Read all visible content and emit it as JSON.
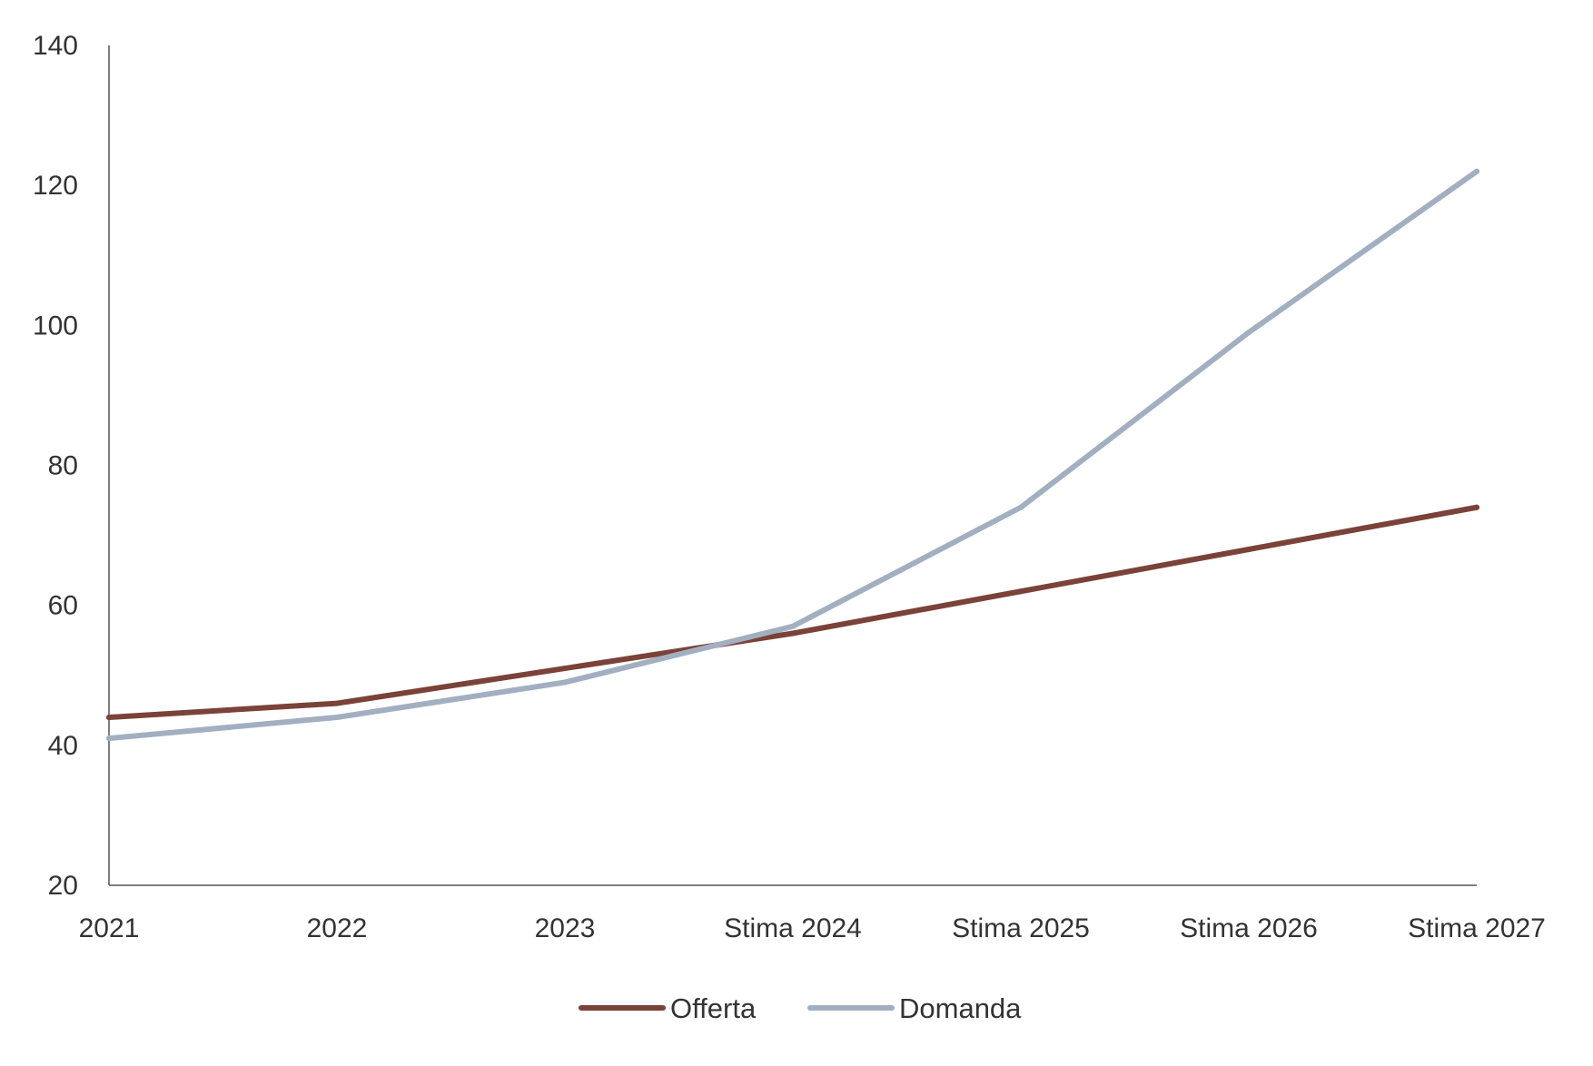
{
  "chart_data": {
    "type": "line",
    "title": "",
    "xlabel": "",
    "ylabel": "",
    "categories": [
      "2021",
      "2022",
      "2023",
      "Stima 2024",
      "Stima 2025",
      "Stima 2026",
      "Stima 2027"
    ],
    "series": [
      {
        "name": "Offerta",
        "color": "#7a4238",
        "values": [
          44,
          46,
          51,
          56,
          62,
          68,
          74
        ]
      },
      {
        "name": "Domanda",
        "color": "#a2afc1",
        "values": [
          41,
          44,
          49,
          57,
          74,
          99,
          122
        ]
      }
    ],
    "ylim": [
      20,
      140
    ],
    "yticks": [
      20,
      40,
      60,
      80,
      100,
      120,
      140
    ],
    "grid": false,
    "legend": "bottom-center"
  }
}
